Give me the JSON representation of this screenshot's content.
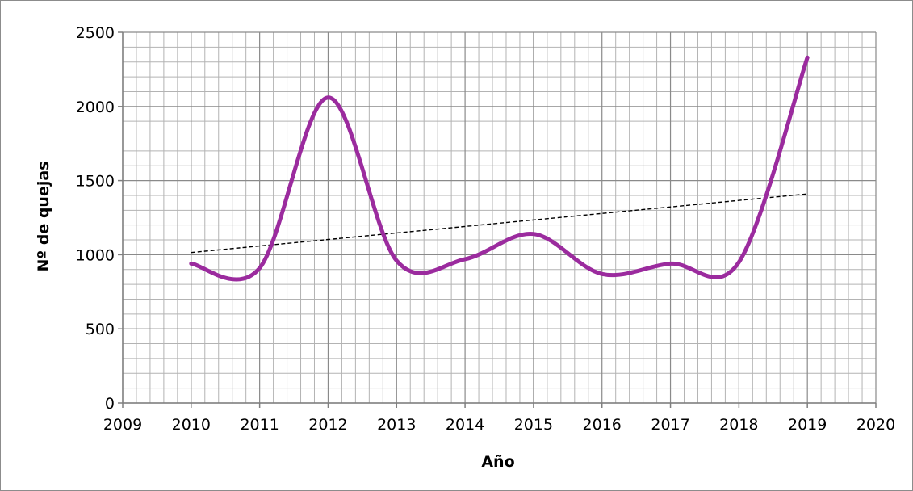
{
  "chart_data": {
    "type": "line",
    "title": "",
    "xlabel": "Año",
    "ylabel": "Nº de quejas",
    "xlim": [
      2009,
      2020
    ],
    "ylim": [
      0,
      2500
    ],
    "x_ticks": [
      "2009",
      "2010",
      "2011",
      "2012",
      "2013",
      "2014",
      "2015",
      "2016",
      "2017",
      "2018",
      "2019",
      "2020"
    ],
    "y_ticks": [
      "0",
      "500",
      "1000",
      "1500",
      "2000",
      "2500"
    ],
    "grid": true,
    "legend": "none",
    "series": [
      {
        "x": [
          2010,
          2011,
          2012,
          2013,
          2014,
          2015,
          2016,
          2017,
          2018,
          2019
        ],
        "values": [
          940,
          910,
          2060,
          960,
          970,
          1140,
          870,
          940,
          950,
          2330
        ],
        "color": "#9b2b9e",
        "smooth": true
      }
    ],
    "trendline": {
      "type": "linear",
      "x": [
        2010,
        2019
      ],
      "values": [
        1015,
        1410
      ],
      "color": "#000000",
      "style": "dashed"
    }
  }
}
